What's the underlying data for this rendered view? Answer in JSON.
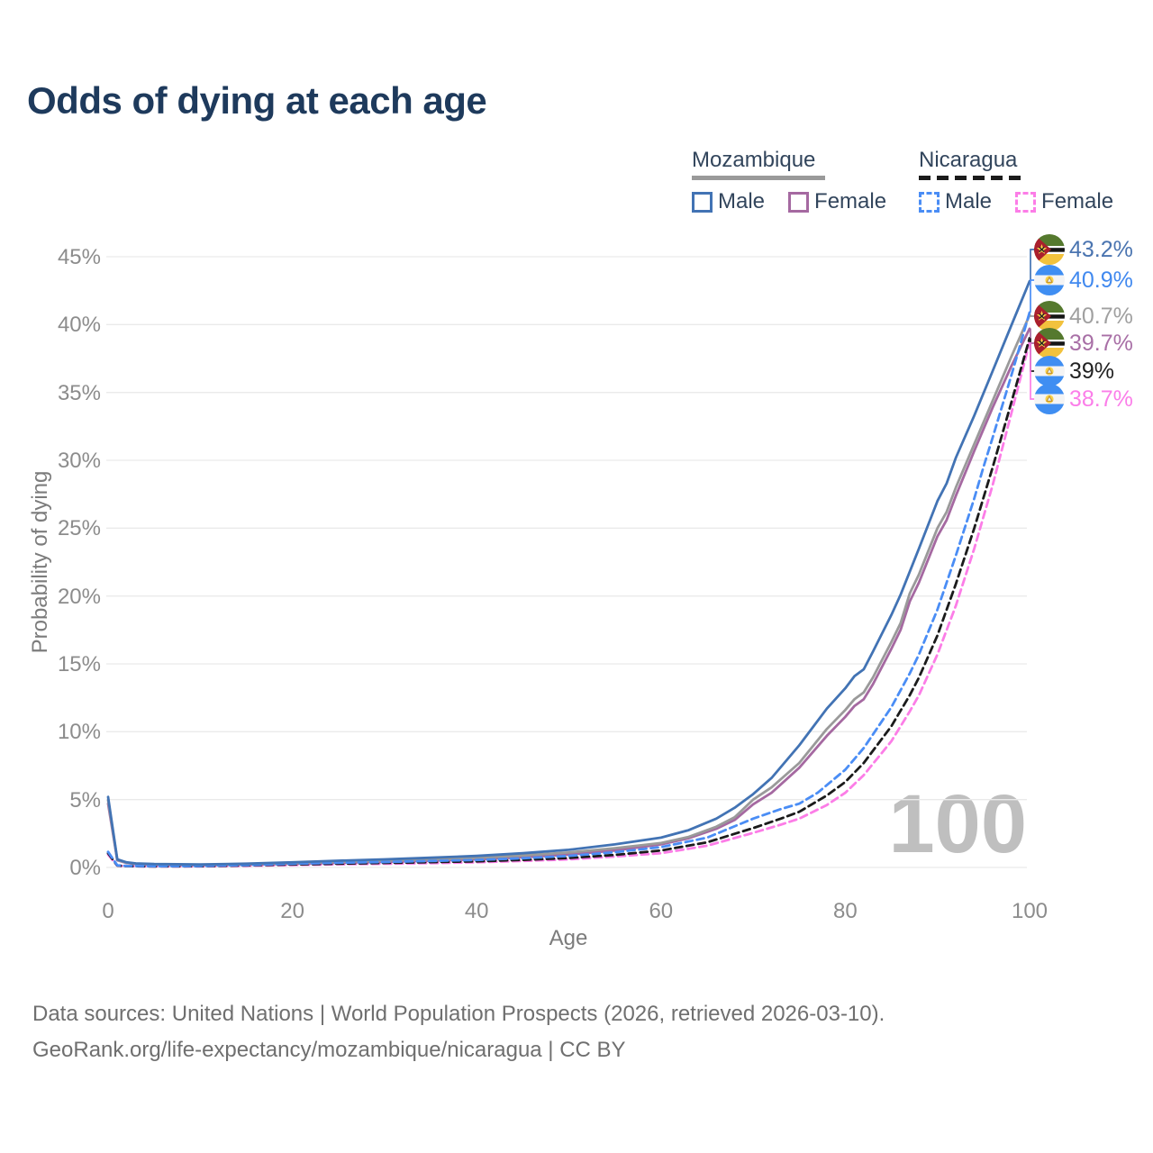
{
  "title": "Odds of dying at each age",
  "watermark": "100",
  "legend": {
    "groups": [
      {
        "label": "Mozambique",
        "line_style": "solid",
        "line_color": "#9a9a9a",
        "items": [
          {
            "label": "Male",
            "color": "#4273b4",
            "dashed": false
          },
          {
            "label": "Female",
            "color": "#a569a1",
            "dashed": false
          }
        ]
      },
      {
        "label": "Nicaragua",
        "line_style": "dashed",
        "line_color": "#1b1b1b",
        "items": [
          {
            "label": "Male",
            "color": "#4a8df5",
            "dashed": true
          },
          {
            "label": "Female",
            "color": "#fc7de7",
            "dashed": true
          }
        ]
      }
    ]
  },
  "footer": {
    "line1": "Data sources: United Nations | World Population Prospects (2026, retrieved 2026-03-10).",
    "line2": "GeoRank.org/life-expectancy/mozambique/nicaragua | CC BY"
  },
  "chart_data": {
    "type": "line",
    "xlabel": "Age",
    "ylabel": "Probability of dying",
    "xlim": [
      0,
      100
    ],
    "ylim": [
      0,
      45
    ],
    "x_ticks": [
      "0",
      "20",
      "40",
      "60",
      "80",
      "100"
    ],
    "y_ticks": [
      "0%",
      "5%",
      "10%",
      "15%",
      "20%",
      "25%",
      "30%",
      "35%",
      "40%",
      "45%"
    ],
    "grid": "horizontal",
    "legend_position": "top-right",
    "series": [
      {
        "name": "Mozambique Male",
        "country": "Mozambique",
        "sex": "Male",
        "color": "#4273b4",
        "label_color": "#4a74b0",
        "dashed": false,
        "flag": "mozambique",
        "end_label": "43.2%",
        "end_value": 43.2,
        "points": [
          [
            0,
            5.2
          ],
          [
            1,
            0.6
          ],
          [
            2,
            0.38
          ],
          [
            3,
            0.3
          ],
          [
            5,
            0.25
          ],
          [
            10,
            0.22
          ],
          [
            15,
            0.28
          ],
          [
            20,
            0.38
          ],
          [
            25,
            0.5
          ],
          [
            30,
            0.6
          ],
          [
            35,
            0.72
          ],
          [
            40,
            0.85
          ],
          [
            45,
            1.05
          ],
          [
            50,
            1.3
          ],
          [
            55,
            1.7
          ],
          [
            60,
            2.2
          ],
          [
            63,
            2.75
          ],
          [
            66,
            3.6
          ],
          [
            68,
            4.4
          ],
          [
            70,
            5.4
          ],
          [
            72,
            6.6
          ],
          [
            75,
            9.0
          ],
          [
            78,
            11.7
          ],
          [
            80,
            13.2
          ],
          [
            81,
            14.1
          ],
          [
            82,
            14.6
          ],
          [
            83,
            15.9
          ],
          [
            85,
            18.6
          ],
          [
            86,
            20.1
          ],
          [
            88,
            23.5
          ],
          [
            90,
            27.0
          ],
          [
            91,
            28.3
          ],
          [
            92,
            30.2
          ],
          [
            94,
            33.3
          ],
          [
            96,
            36.6
          ],
          [
            98,
            39.9
          ],
          [
            100,
            43.2
          ]
        ]
      },
      {
        "name": "Nicaragua Male",
        "country": "Nicaragua",
        "sex": "Male",
        "color": "#4a8df5",
        "label_color": "#4189ef",
        "dashed": true,
        "flag": "nicaragua",
        "end_label": "40.9%",
        "end_value": 40.9,
        "points": [
          [
            0,
            1.15
          ],
          [
            1,
            0.16
          ],
          [
            2,
            0.11
          ],
          [
            5,
            0.09
          ],
          [
            10,
            0.11
          ],
          [
            15,
            0.18
          ],
          [
            20,
            0.28
          ],
          [
            25,
            0.35
          ],
          [
            30,
            0.4
          ],
          [
            35,
            0.48
          ],
          [
            40,
            0.55
          ],
          [
            45,
            0.68
          ],
          [
            50,
            0.85
          ],
          [
            55,
            1.12
          ],
          [
            60,
            1.5
          ],
          [
            65,
            2.2
          ],
          [
            70,
            3.6
          ],
          [
            73,
            4.3
          ],
          [
            75,
            4.7
          ],
          [
            77,
            5.5
          ],
          [
            80,
            7.2
          ],
          [
            82,
            8.8
          ],
          [
            85,
            11.8
          ],
          [
            87,
            14.3
          ],
          [
            88,
            15.7
          ],
          [
            90,
            19.0
          ],
          [
            92,
            23.0
          ],
          [
            94,
            27.2
          ],
          [
            95,
            29.5
          ],
          [
            96,
            31.7
          ],
          [
            98,
            36.2
          ],
          [
            100,
            40.9
          ]
        ]
      },
      {
        "name": "Mozambique",
        "country": "Mozambique",
        "sex": "Both",
        "color": "#9a9a9a",
        "label_color": "#a0a0a0",
        "dashed": false,
        "flag": "mozambique",
        "end_label": "40.7%",
        "end_value": 40.7,
        "points": [
          [
            0,
            4.95
          ],
          [
            1,
            0.56
          ],
          [
            2,
            0.35
          ],
          [
            3,
            0.28
          ],
          [
            5,
            0.23
          ],
          [
            10,
            0.19
          ],
          [
            15,
            0.24
          ],
          [
            20,
            0.32
          ],
          [
            25,
            0.42
          ],
          [
            30,
            0.5
          ],
          [
            35,
            0.6
          ],
          [
            40,
            0.7
          ],
          [
            45,
            0.88
          ],
          [
            50,
            1.1
          ],
          [
            55,
            1.42
          ],
          [
            60,
            1.8
          ],
          [
            63,
            2.25
          ],
          [
            66,
            3.0
          ],
          [
            68,
            3.7
          ],
          [
            70,
            5.0
          ],
          [
            72,
            5.9
          ],
          [
            75,
            7.7
          ],
          [
            78,
            10.2
          ],
          [
            80,
            11.6
          ],
          [
            81,
            12.4
          ],
          [
            82,
            12.9
          ],
          [
            83,
            14.0
          ],
          [
            85,
            16.6
          ],
          [
            86,
            18.0
          ],
          [
            87,
            20.2
          ],
          [
            88,
            21.6
          ],
          [
            90,
            25.0
          ],
          [
            91,
            26.2
          ],
          [
            92,
            28.0
          ],
          [
            94,
            31.2
          ],
          [
            96,
            34.4
          ],
          [
            98,
            37.6
          ],
          [
            100,
            40.7
          ]
        ]
      },
      {
        "name": "Mozambique Female",
        "country": "Mozambique",
        "sex": "Female",
        "color": "#a569a1",
        "label_color": "#a86fa6",
        "dashed": false,
        "flag": "mozambique",
        "end_label": "39.7%",
        "end_value": 39.7,
        "points": [
          [
            0,
            4.7
          ],
          [
            1,
            0.53
          ],
          [
            2,
            0.33
          ],
          [
            3,
            0.26
          ],
          [
            5,
            0.21
          ],
          [
            10,
            0.17
          ],
          [
            15,
            0.21
          ],
          [
            20,
            0.27
          ],
          [
            25,
            0.35
          ],
          [
            30,
            0.42
          ],
          [
            35,
            0.5
          ],
          [
            40,
            0.6
          ],
          [
            45,
            0.75
          ],
          [
            50,
            0.95
          ],
          [
            55,
            1.25
          ],
          [
            60,
            1.7
          ],
          [
            63,
            2.15
          ],
          [
            66,
            2.85
          ],
          [
            68,
            3.5
          ],
          [
            70,
            4.65
          ],
          [
            72,
            5.5
          ],
          [
            75,
            7.35
          ],
          [
            78,
            9.7
          ],
          [
            80,
            11.1
          ],
          [
            81,
            11.9
          ],
          [
            82,
            12.4
          ],
          [
            83,
            13.5
          ],
          [
            85,
            16.1
          ],
          [
            86,
            17.5
          ],
          [
            87,
            19.6
          ],
          [
            88,
            21.0
          ],
          [
            90,
            24.4
          ],
          [
            91,
            25.6
          ],
          [
            92,
            27.4
          ],
          [
            94,
            30.7
          ],
          [
            96,
            33.9
          ],
          [
            98,
            36.9
          ],
          [
            100,
            39.7
          ]
        ]
      },
      {
        "name": "Nicaragua",
        "country": "Nicaragua",
        "sex": "Both",
        "color": "#1b1b1b",
        "label_color": "#222222",
        "dashed": true,
        "flag": "nicaragua",
        "end_label": "39%",
        "end_value": 39,
        "points": [
          [
            0,
            1.05
          ],
          [
            1,
            0.14
          ],
          [
            2,
            0.1
          ],
          [
            5,
            0.08
          ],
          [
            10,
            0.09
          ],
          [
            15,
            0.15
          ],
          [
            20,
            0.22
          ],
          [
            25,
            0.28
          ],
          [
            30,
            0.33
          ],
          [
            35,
            0.39
          ],
          [
            40,
            0.45
          ],
          [
            45,
            0.56
          ],
          [
            50,
            0.7
          ],
          [
            55,
            0.92
          ],
          [
            60,
            1.25
          ],
          [
            65,
            1.85
          ],
          [
            70,
            2.9
          ],
          [
            73,
            3.6
          ],
          [
            75,
            4.1
          ],
          [
            78,
            5.3
          ],
          [
            80,
            6.3
          ],
          [
            82,
            7.7
          ],
          [
            85,
            10.4
          ],
          [
            87,
            12.7
          ],
          [
            88,
            14.0
          ],
          [
            90,
            17.1
          ],
          [
            92,
            20.9
          ],
          [
            94,
            25.0
          ],
          [
            96,
            29.5
          ],
          [
            98,
            34.2
          ],
          [
            100,
            39.0
          ]
        ]
      },
      {
        "name": "Nicaragua Female",
        "country": "Nicaragua",
        "sex": "Female",
        "color": "#fc7de7",
        "label_color": "#fb7ee9",
        "dashed": true,
        "flag": "nicaragua",
        "end_label": "38.7%",
        "end_value": 38.7,
        "points": [
          [
            0,
            0.95
          ],
          [
            1,
            0.13
          ],
          [
            2,
            0.09
          ],
          [
            5,
            0.07
          ],
          [
            10,
            0.08
          ],
          [
            15,
            0.12
          ],
          [
            20,
            0.18
          ],
          [
            25,
            0.23
          ],
          [
            30,
            0.27
          ],
          [
            35,
            0.32
          ],
          [
            40,
            0.38
          ],
          [
            45,
            0.48
          ],
          [
            50,
            0.6
          ],
          [
            55,
            0.8
          ],
          [
            60,
            1.05
          ],
          [
            65,
            1.6
          ],
          [
            70,
            2.55
          ],
          [
            73,
            3.15
          ],
          [
            75,
            3.6
          ],
          [
            78,
            4.6
          ],
          [
            80,
            5.5
          ],
          [
            82,
            6.8
          ],
          [
            85,
            9.3
          ],
          [
            87,
            11.5
          ],
          [
            88,
            12.7
          ],
          [
            90,
            15.7
          ],
          [
            92,
            19.3
          ],
          [
            94,
            23.5
          ],
          [
            96,
            28.2
          ],
          [
            98,
            33.4
          ],
          [
            100,
            38.7
          ]
        ]
      }
    ]
  }
}
